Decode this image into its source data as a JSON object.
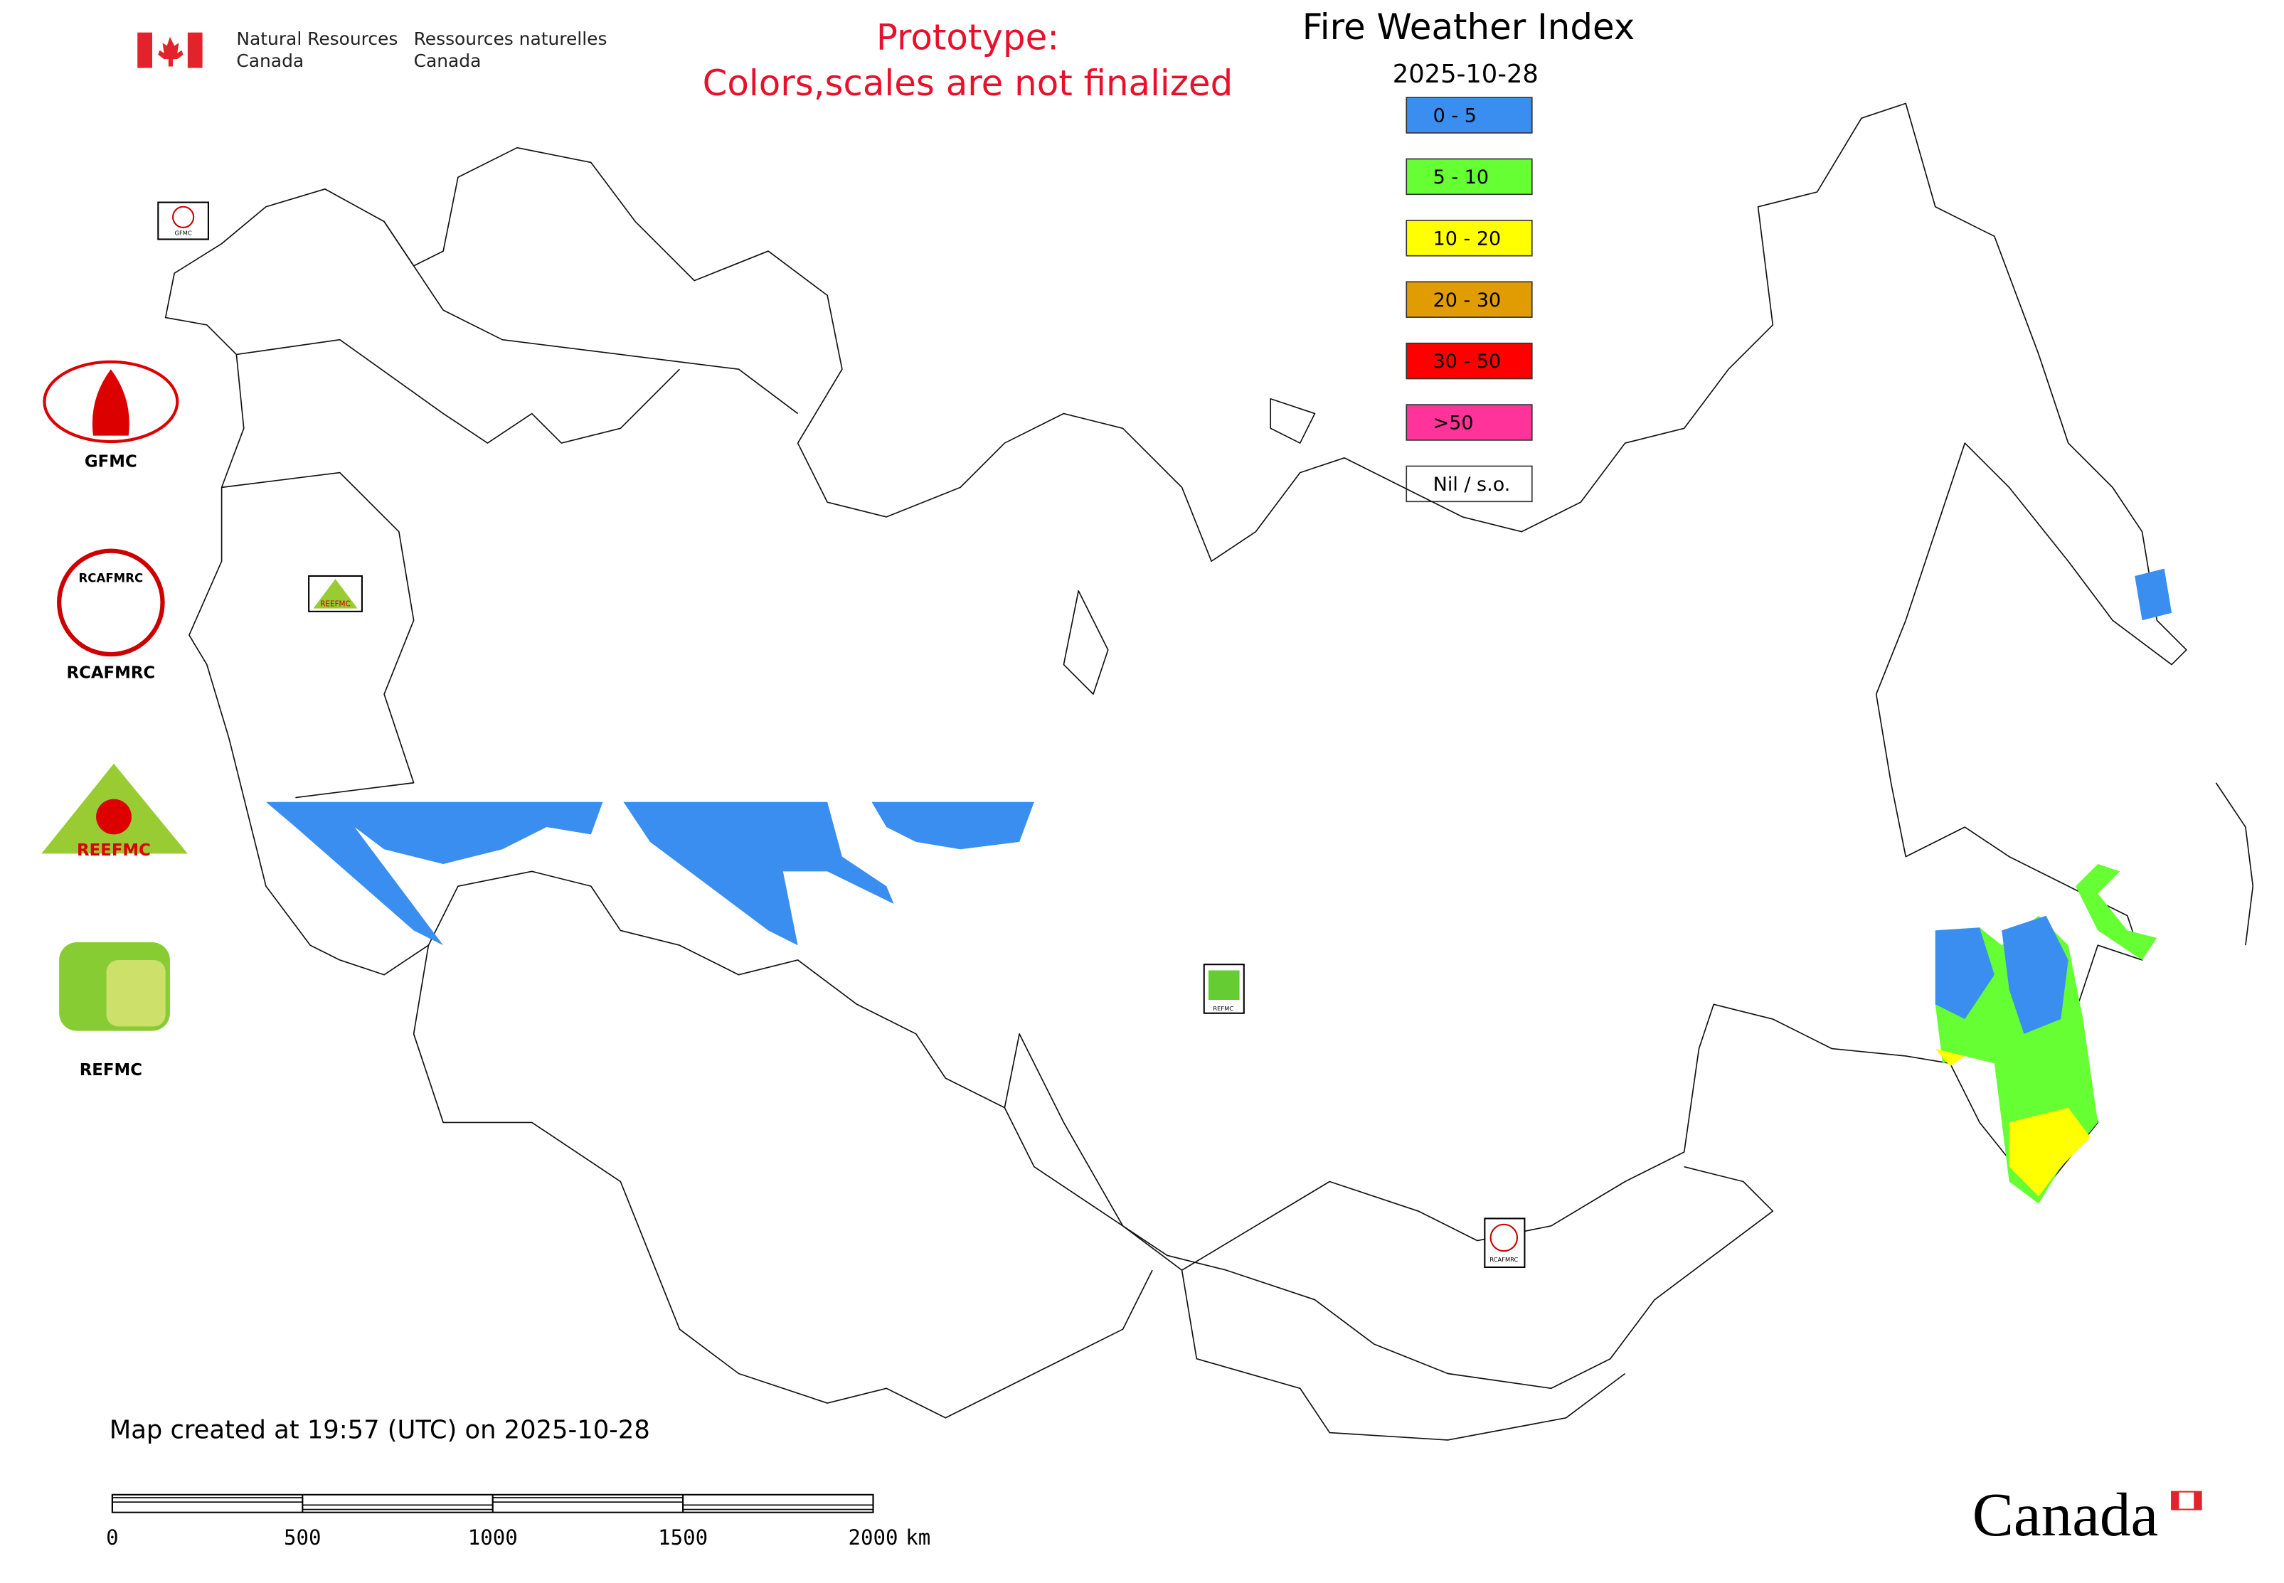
{
  "header": {
    "agency_en_1": "Natural Resources",
    "agency_en_2": "Canada",
    "agency_fr_1": "Ressources naturelles",
    "agency_fr_2": "Canada"
  },
  "notice": [
    "Prototype:",
    "Colors,scales are not finalized"
  ],
  "title": "Fire Weather Index",
  "date": "2025-10-28",
  "legend": [
    {
      "label": "0 - 5",
      "color": "#3a8ef0"
    },
    {
      "label": "5 - 10",
      "color": "#66ff33"
    },
    {
      "label": "10 - 20",
      "color": "#ffff00"
    },
    {
      "label": "20 - 30",
      "color": "#e09c00"
    },
    {
      "label": "30 - 50",
      "color": "#ff0000"
    },
    {
      "label": ">50",
      "color": "#ff3399"
    },
    {
      "label": "Nil / s.o.",
      "color": "#ffffff"
    }
  ],
  "logos": [
    "GFMC",
    "RCAFMRC",
    "REEFMC",
    "REFMC"
  ],
  "footer": "Map created at 19:57 (UTC) on 2025-10-28",
  "scale_bar": {
    "ticks": [
      0,
      500,
      1000,
      1500,
      2000
    ],
    "unit": "km"
  },
  "wordmark": "Canada"
}
